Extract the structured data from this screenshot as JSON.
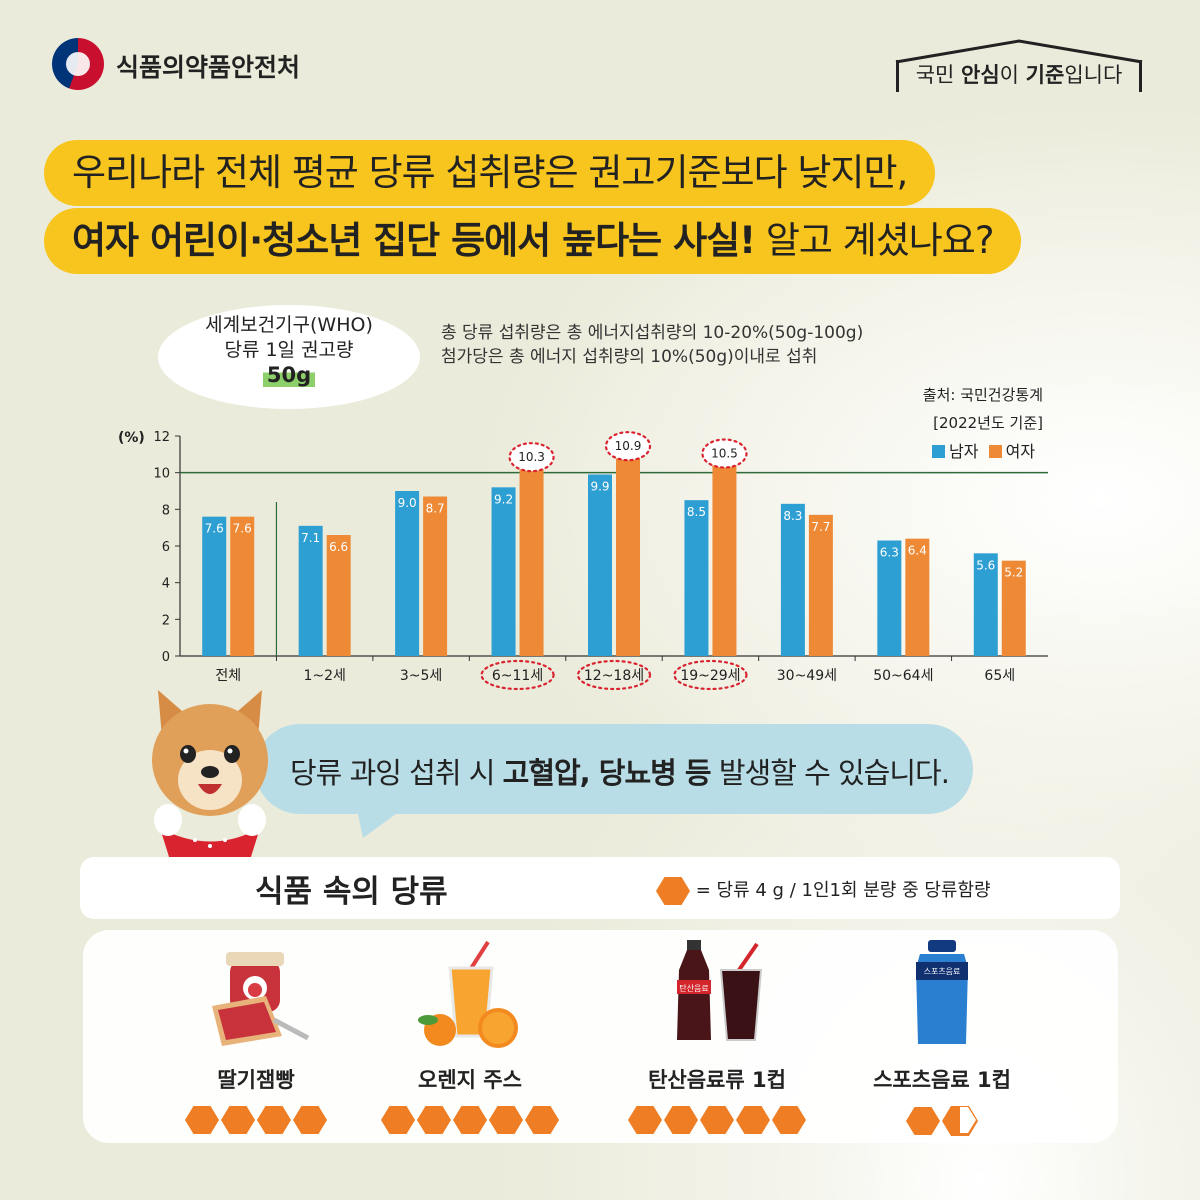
{
  "header": {
    "org_name": "식품의약품안전처",
    "slogan_prefix": "국민 ",
    "slogan_bold1": "안심",
    "slogan_mid": "이 ",
    "slogan_bold2": "기준",
    "slogan_suffix": "입니다"
  },
  "headline": {
    "line1": "우리나라 전체 평균 당류 섭취량은 권고기준보다 낮지만,",
    "line2_bold": "여자 어린이·청소년 집단 등에서 높다는 사실!",
    "line2_rest": " 알고 계셨나요?"
  },
  "who": {
    "line1": "세계보건기구(WHO)",
    "line2": "당류 1일 권고량",
    "amount": "50g"
  },
  "note": {
    "line1": "총 당류 섭취량은 총 에너지섭취량의 10-20%(50g-100g)",
    "line2": "첨가당은 총 에너지 섭취량의 10%(50g)이내로 섭취"
  },
  "source": {
    "line1": "출처: 국민건강통계",
    "line2": "[2022년도 기준]"
  },
  "chart_data": {
    "type": "bar",
    "ylabel": "(%)",
    "ylim": [
      0,
      12
    ],
    "yticks": [
      0,
      2,
      4,
      6,
      8,
      10,
      12
    ],
    "reference_line": 10,
    "categories": [
      "전체",
      "1~2세",
      "3~5세",
      "6~11세",
      "12~18세",
      "19~29세",
      "30~49세",
      "50~64세",
      "65세"
    ],
    "highlighted_categories": [
      "6~11세",
      "12~18세",
      "19~29세"
    ],
    "series": [
      {
        "name": "남자",
        "color": "#2e9fd3",
        "values": [
          7.6,
          7.1,
          9.0,
          9.2,
          9.9,
          8.5,
          8.3,
          6.3,
          5.6
        ],
        "labels": [
          "7.6",
          "7.1",
          "9.0",
          "9.2",
          "9.9",
          "8.5",
          "8.3",
          "6.3",
          "5.6"
        ]
      },
      {
        "name": "여자",
        "color": "#ee8a36",
        "values": [
          7.6,
          6.6,
          8.7,
          10.3,
          10.9,
          10.5,
          7.7,
          6.4,
          5.2
        ],
        "labels": [
          "7.6",
          "6.6",
          "8.7",
          "10.3",
          "10.9",
          "10.5",
          "7.7",
          "6.4",
          "5.2"
        ]
      }
    ],
    "grid": false,
    "legend_position": "top-right"
  },
  "speech": {
    "prefix": "당류 과잉 섭취 시 ",
    "bold": "고혈압, 당뇨병 등",
    "suffix": " 발생할 수 있습니다."
  },
  "foods": {
    "title": "식품 속의 당류",
    "legend": "= 당류 4 g / 1인1회 분량 중 당류함량",
    "hex_color": "#ee7d23",
    "items": [
      {
        "name": "딸기잼빵",
        "sugar_units": 4,
        "icon": "jam-bread-icon"
      },
      {
        "name": "오렌지 주스",
        "sugar_units": 5,
        "icon": "orange-juice-icon"
      },
      {
        "name": "탄산음료류 1컵",
        "sugar_units": 5,
        "icon": "soda-icon",
        "label_on_bottle": "탄산음료"
      },
      {
        "name": "스포츠음료 1컵",
        "sugar_units": 1.5,
        "icon": "sports-drink-icon",
        "label_on_bottle": "스포츠음료"
      }
    ]
  }
}
